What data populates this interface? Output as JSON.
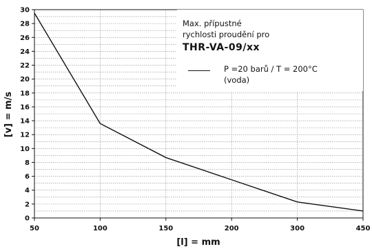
{
  "chart_data": {
    "type": "line",
    "xlabel": "[l] = mm",
    "ylabel": "[v] = m/s",
    "x_ticks": [
      "50",
      "100",
      "150",
      "200",
      "300",
      "450"
    ],
    "ylim": [
      0,
      30
    ],
    "y_ticks": [
      "0",
      "2",
      "4",
      "6",
      "8",
      "10",
      "12",
      "14",
      "16",
      "18",
      "20",
      "22",
      "24",
      "26",
      "28",
      "30"
    ],
    "series": [
      {
        "name": "P =20 barů  /  T = 200°C",
        "x": [
          "50",
          "100",
          "150",
          "200",
          "300",
          "450"
        ],
        "y": [
          29.5,
          13.6,
          8.7,
          5.5,
          2.3,
          1.0
        ]
      }
    ],
    "grid": true,
    "legend_position": "top-right",
    "annotation": {
      "line1": "Max. přípustné",
      "line2": "rychlosti proudění pro",
      "product": "THR-VA-09/xx",
      "legend_sub": "(voda)"
    }
  }
}
